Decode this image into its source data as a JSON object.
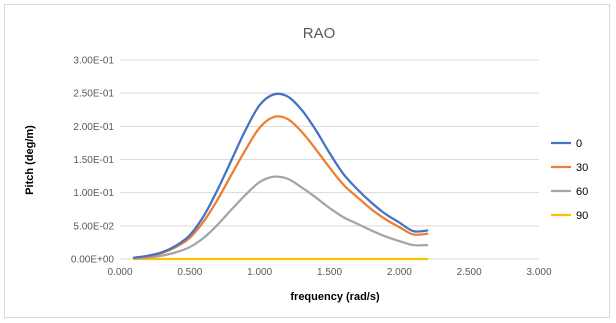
{
  "chart_data": {
    "type": "line",
    "title": "RAO",
    "xlabel": "frequency (rad/s)",
    "ylabel": "Pitch (deg/m)",
    "xlim": [
      0,
      3
    ],
    "ylim": [
      0,
      0.3
    ],
    "x_ticks": [
      "0.000",
      "0.500",
      "1.000",
      "1.500",
      "2.000",
      "2.500",
      "3.000"
    ],
    "x_tick_values": [
      0,
      0.5,
      1,
      1.5,
      2,
      2.5,
      3
    ],
    "y_ticks": [
      "0.00E+00",
      "5.00E-02",
      "1.00E-01",
      "1.50E-01",
      "2.00E-01",
      "2.50E-01",
      "3.00E-01"
    ],
    "y_tick_values": [
      0,
      0.05,
      0.1,
      0.15,
      0.2,
      0.25,
      0.3
    ],
    "grid": "horizontal",
    "legend_position": "right",
    "x": [
      0.1,
      0.2,
      0.3,
      0.4,
      0.5,
      0.6,
      0.7,
      0.8,
      0.9,
      1.0,
      1.1,
      1.2,
      1.3,
      1.4,
      1.5,
      1.6,
      1.7,
      1.8,
      1.9,
      2.0,
      2.1,
      2.2
    ],
    "series": [
      {
        "name": "0",
        "color": "#4472c4",
        "values": [
          0.002,
          0.005,
          0.01,
          0.02,
          0.036,
          0.065,
          0.105,
          0.15,
          0.195,
          0.232,
          0.248,
          0.245,
          0.225,
          0.195,
          0.16,
          0.128,
          0.105,
          0.085,
          0.068,
          0.055,
          0.042,
          0.043
        ]
      },
      {
        "name": "30",
        "color": "#ed7d31",
        "values": [
          0.002,
          0.004,
          0.009,
          0.018,
          0.032,
          0.057,
          0.09,
          0.128,
          0.165,
          0.198,
          0.214,
          0.211,
          0.192,
          0.166,
          0.138,
          0.112,
          0.093,
          0.075,
          0.06,
          0.048,
          0.037,
          0.038
        ]
      },
      {
        "name": "60",
        "color": "#a5a5a5",
        "values": [
          0.001,
          0.002,
          0.005,
          0.01,
          0.018,
          0.032,
          0.052,
          0.075,
          0.097,
          0.116,
          0.124,
          0.121,
          0.108,
          0.093,
          0.077,
          0.063,
          0.053,
          0.043,
          0.034,
          0.027,
          0.021,
          0.021
        ]
      },
      {
        "name": "90",
        "color": "#ffc000",
        "values": [
          0,
          0,
          0,
          0,
          0,
          0,
          0,
          0,
          0,
          0,
          0,
          0,
          0,
          0,
          0,
          0,
          0,
          0,
          0,
          0,
          0,
          0
        ]
      }
    ]
  }
}
